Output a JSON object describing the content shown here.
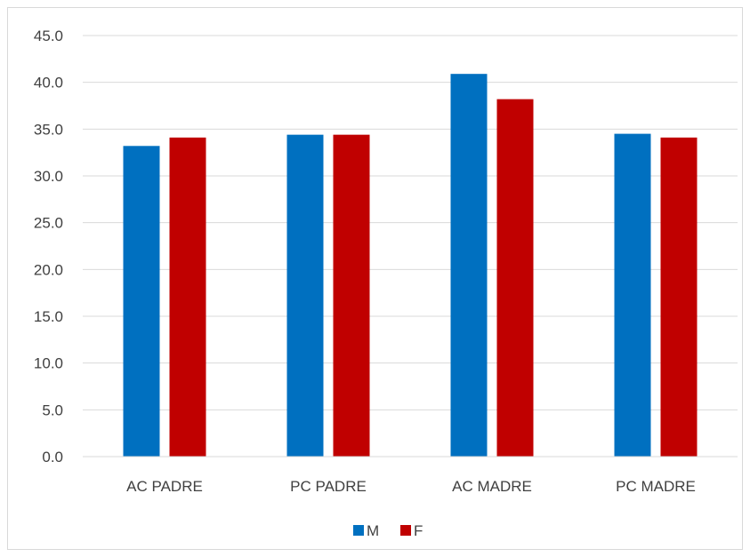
{
  "chart_data": {
    "type": "bar",
    "title": "",
    "xlabel": "",
    "ylabel": "",
    "categories": [
      "AC PADRE",
      "PC PADRE",
      "AC MADRE",
      "PC MADRE"
    ],
    "series": [
      {
        "name": "M",
        "values": [
          33.2,
          34.4,
          40.9,
          34.5
        ],
        "color": "#0070c0"
      },
      {
        "name": "F",
        "values": [
          34.1,
          34.4,
          38.2,
          34.1
        ],
        "color": "#c00000"
      }
    ],
    "ylim": [
      0,
      45
    ],
    "yticks": [
      "0.0",
      "5.0",
      "10.0",
      "15.0",
      "20.0",
      "25.0",
      "30.0",
      "35.0",
      "40.0",
      "45.0"
    ],
    "grid": true,
    "legend": "bottom"
  }
}
